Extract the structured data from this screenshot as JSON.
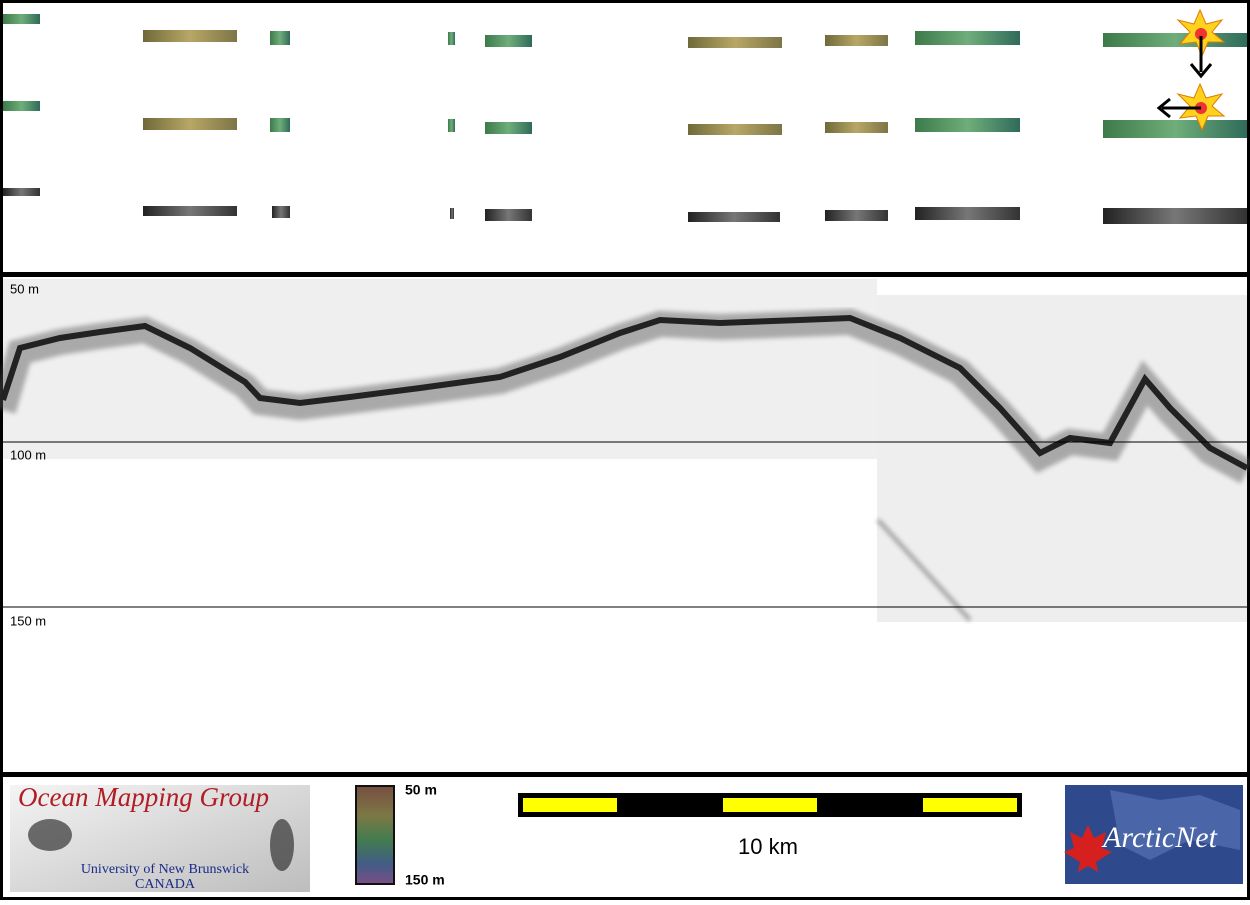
{
  "echogram": {
    "depth_labels": [
      "50 m",
      "100 m",
      "150 m"
    ]
  },
  "footer": {
    "logo_title": "Ocean Mapping Group",
    "logo_university": "University of New Brunswick",
    "logo_country": "CANADA",
    "colorbar_top": "50 m",
    "colorbar_bottom": "150 m",
    "scale_label": "10 km",
    "partner_logo": "ArcticNet"
  }
}
